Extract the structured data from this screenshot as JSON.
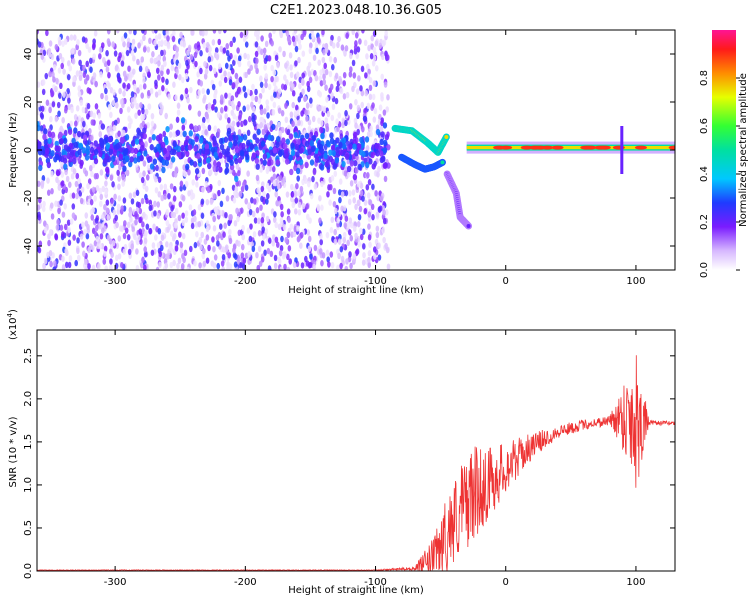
{
  "title": "C2E1.2023.048.10.36.G05",
  "colors": {
    "series": "#ee3333",
    "band": "#7a1cff",
    "axis": "#000000"
  },
  "chart_data": [
    {
      "type": "heatmap",
      "xlabel": "Height of straight line (km)",
      "ylabel": "Frequency (Hz)",
      "xlim": [
        -360,
        130
      ],
      "ylim": [
        -50,
        50
      ],
      "x_ticks": [
        "-300",
        "-200",
        "-100",
        "0",
        "100"
      ],
      "y_ticks": [
        "40",
        "20",
        "0",
        "-20",
        "-40"
      ],
      "x_tick_values": [
        -300,
        -200,
        -100,
        0,
        100
      ],
      "y_tick_values": [
        40,
        20,
        0,
        -20,
        -40
      ],
      "colorbar": {
        "label": "Normalized spectral amplitude",
        "range": [
          0,
          1
        ],
        "ticks": [
          "0.0",
          "0.2",
          "0.4",
          "0.6",
          "0.8"
        ],
        "tick_values": [
          0,
          0.2,
          0.4,
          0.6,
          0.8
        ]
      },
      "noise_region": {
        "x_from": -360,
        "x_to": -90,
        "freq_spread": 50
      },
      "features": [
        {
          "name": "central-band",
          "x_from": -360,
          "x_to": -90,
          "freq": 0,
          "amplitude": 0.25
        },
        {
          "name": "arc-upper",
          "points": [
            [
              -85,
              9
            ],
            [
              -72,
              8
            ],
            [
              -60,
              3
            ],
            [
              -52,
              -1
            ],
            [
              -45,
              6
            ]
          ],
          "amplitude": 0.75
        },
        {
          "name": "arc-lower",
          "points": [
            [
              -80,
              -3
            ],
            [
              -70,
              -6
            ],
            [
              -62,
              -8
            ],
            [
              -55,
              -7
            ],
            [
              -48,
              -5
            ]
          ],
          "amplitude": 0.5
        },
        {
          "name": "tail",
          "points": [
            [
              -45,
              -10
            ],
            [
              -38,
              -18
            ],
            [
              -35,
              -28
            ],
            [
              -28,
              -32
            ]
          ],
          "amplitude": 0.2
        },
        {
          "name": "carrier",
          "x_from": -30,
          "x_to": 130,
          "freq": 1,
          "amplitude": 0.9
        }
      ]
    },
    {
      "type": "line",
      "xlabel": "Height of straight line (km)",
      "ylabel": "SNR (10 * v/v)",
      "yscale_label": "(x10",
      "yscale_exp": "4",
      "yscale_close": ")",
      "xlim": [
        -360,
        130
      ],
      "ylim": [
        0,
        2.8
      ],
      "x_ticks": [
        "-300",
        "-200",
        "-100",
        "0",
        "100"
      ],
      "y_ticks": [
        "0.0",
        "0.5",
        "1.0",
        "1.5",
        "2.0",
        "2.5"
      ],
      "x_tick_values": [
        -300,
        -200,
        -100,
        0,
        100
      ],
      "y_tick_values": [
        0,
        0.5,
        1.0,
        1.5,
        2.0,
        2.5
      ],
      "envelope": {
        "x": [
          -360,
          -100,
          -70,
          -55,
          -45,
          -35,
          -25,
          -15,
          0,
          20,
          40,
          60,
          80,
          90,
          100,
          110,
          130
        ],
        "y": [
          0.01,
          0.01,
          0.03,
          0.15,
          0.45,
          0.7,
          0.9,
          1.0,
          1.2,
          1.45,
          1.62,
          1.7,
          1.75,
          1.8,
          1.78,
          1.72,
          1.72
        ],
        "amp": [
          0.004,
          0.004,
          0.02,
          0.25,
          0.45,
          0.55,
          0.55,
          0.45,
          0.3,
          0.15,
          0.08,
          0.06,
          0.06,
          0.4,
          0.9,
          0.03,
          0.02
        ]
      }
    }
  ]
}
